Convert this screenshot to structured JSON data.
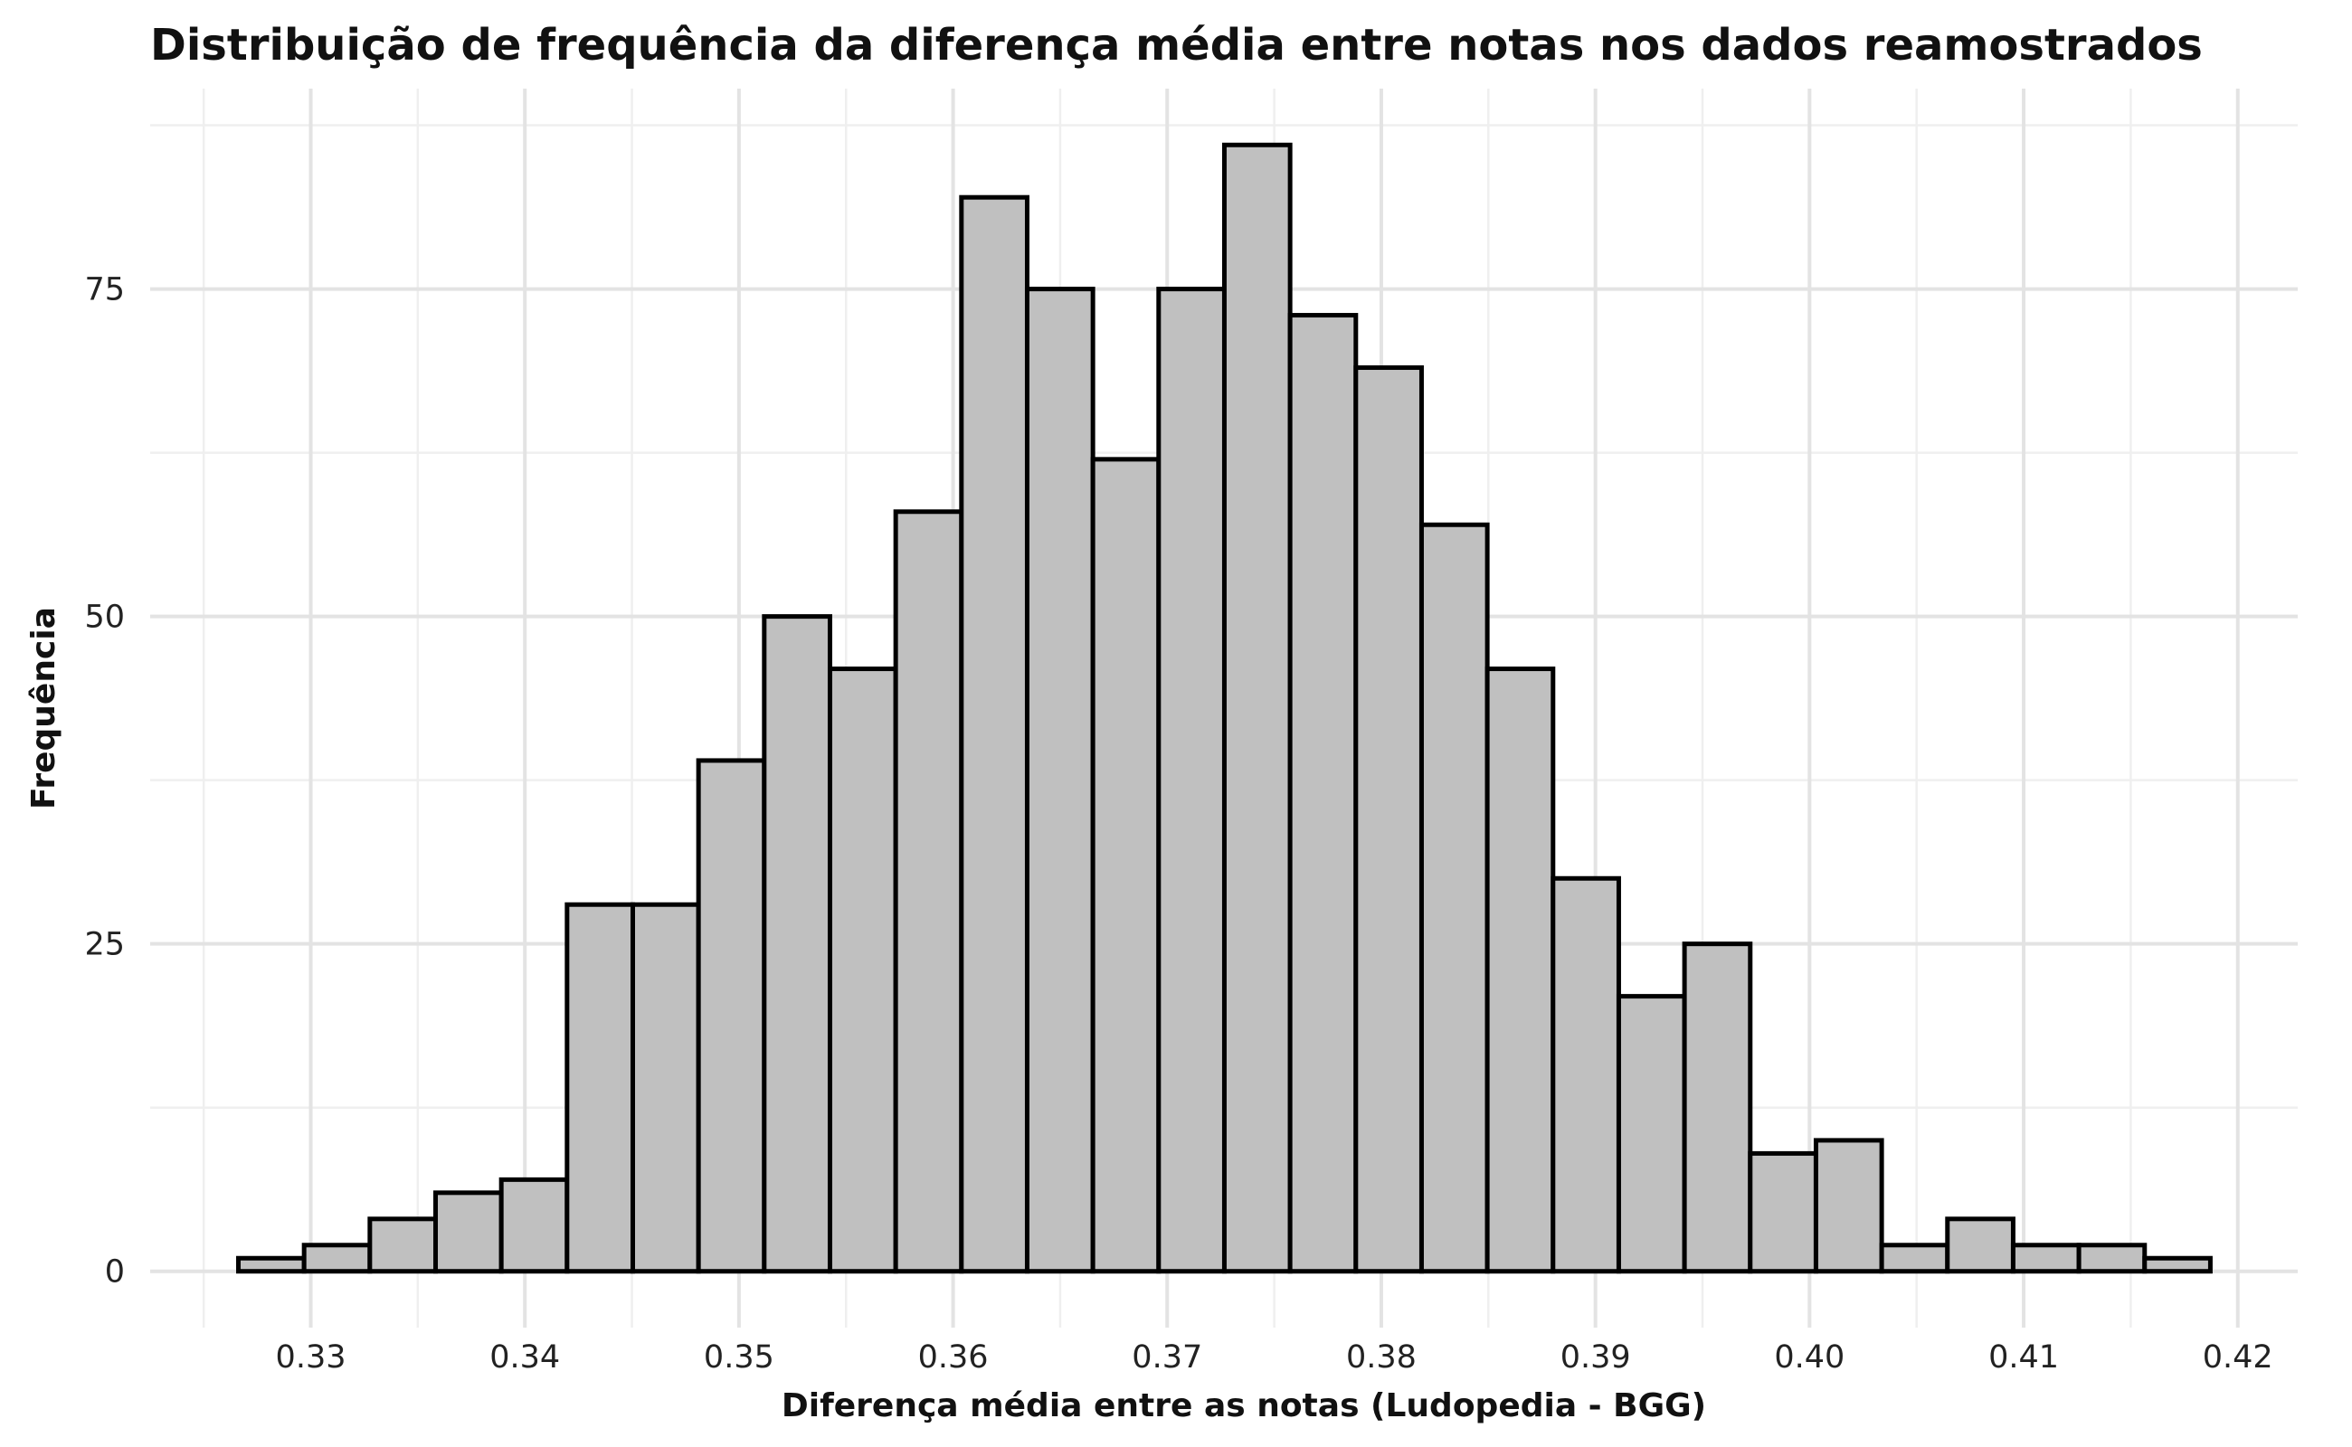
{
  "chart_data": {
    "type": "bar",
    "title": "Distribuição de frequência da diferença média entre notas nos dados reamostrados",
    "xlabel": "Diferença média entre as notas (Ludopedia - BGG)",
    "ylabel": "Frequência",
    "bin_width": 0.00307,
    "bins": [
      {
        "start": 0.32662,
        "end": 0.32969,
        "count": 1
      },
      {
        "start": 0.32969,
        "end": 0.33276,
        "count": 2
      },
      {
        "start": 0.33276,
        "end": 0.33583,
        "count": 4
      },
      {
        "start": 0.33583,
        "end": 0.3389,
        "count": 6
      },
      {
        "start": 0.3389,
        "end": 0.34197,
        "count": 7
      },
      {
        "start": 0.34197,
        "end": 0.34504,
        "count": 28
      },
      {
        "start": 0.34504,
        "end": 0.34811,
        "count": 28
      },
      {
        "start": 0.34811,
        "end": 0.35118,
        "count": 39
      },
      {
        "start": 0.35118,
        "end": 0.35425,
        "count": 50
      },
      {
        "start": 0.35425,
        "end": 0.35732,
        "count": 46
      },
      {
        "start": 0.35732,
        "end": 0.36039,
        "count": 58
      },
      {
        "start": 0.36039,
        "end": 0.36346,
        "count": 82
      },
      {
        "start": 0.36346,
        "end": 0.36653,
        "count": 75
      },
      {
        "start": 0.36653,
        "end": 0.3696,
        "count": 62
      },
      {
        "start": 0.3696,
        "end": 0.37267,
        "count": 75
      },
      {
        "start": 0.37267,
        "end": 0.37574,
        "count": 86
      },
      {
        "start": 0.37574,
        "end": 0.37881,
        "count": 73
      },
      {
        "start": 0.37881,
        "end": 0.38188,
        "count": 69
      },
      {
        "start": 0.38188,
        "end": 0.38495,
        "count": 57
      },
      {
        "start": 0.38495,
        "end": 0.38802,
        "count": 46
      },
      {
        "start": 0.38802,
        "end": 0.39109,
        "count": 30
      },
      {
        "start": 0.39109,
        "end": 0.39416,
        "count": 21
      },
      {
        "start": 0.39416,
        "end": 0.39723,
        "count": 25
      },
      {
        "start": 0.39723,
        "end": 0.4003,
        "count": 9
      },
      {
        "start": 0.4003,
        "end": 0.40337,
        "count": 10
      },
      {
        "start": 0.40337,
        "end": 0.40644,
        "count": 2
      },
      {
        "start": 0.40644,
        "end": 0.40951,
        "count": 4
      },
      {
        "start": 0.40951,
        "end": 0.41258,
        "count": 2
      },
      {
        "start": 0.41258,
        "end": 0.41565,
        "count": 2
      },
      {
        "start": 0.41565,
        "end": 0.41872,
        "count": 1
      }
    ],
    "xlim": [
      0.3225,
      0.4228
    ],
    "ylim": [
      -4.3,
      90.3
    ],
    "x_ticks": [
      0.33,
      0.34,
      0.35,
      0.36,
      0.37,
      0.38,
      0.39,
      0.4,
      0.41,
      0.42
    ],
    "x_tick_labels": [
      "0.33",
      "0.34",
      "0.35",
      "0.36",
      "0.37",
      "0.38",
      "0.39",
      "0.40",
      "0.41",
      "0.42"
    ],
    "y_ticks": [
      0,
      25,
      50,
      75
    ],
    "y_tick_labels": [
      "0",
      "25",
      "50",
      "75"
    ],
    "grid": true,
    "bar_fill": "#c0c0c0",
    "bar_edge": "#000000",
    "legend": "none"
  }
}
